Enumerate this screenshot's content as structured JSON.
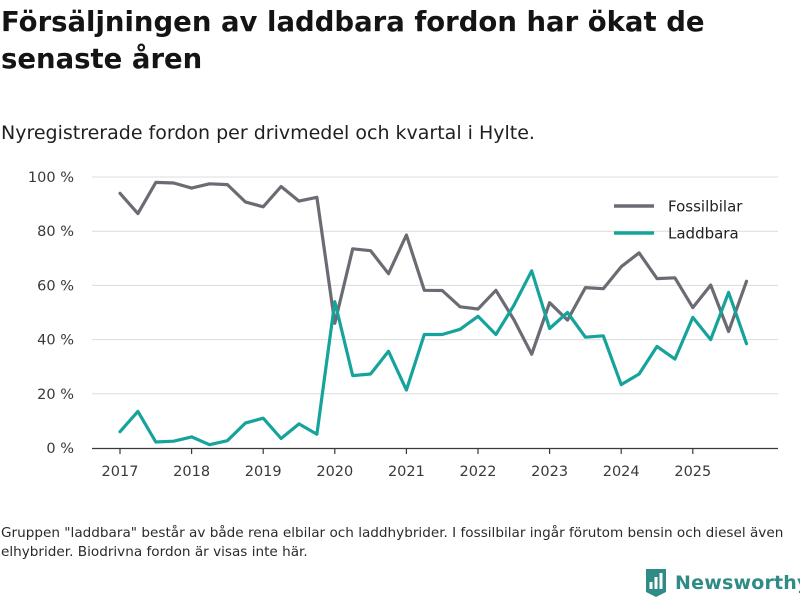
{
  "title": "Försäljningen av laddbara fordon har ökat de senaste åren",
  "subtitle": "Nyregistrerade fordon per drivmedel och kvartal i Hylte.",
  "footnote": "Gruppen \"laddbara\" består av både rena elbilar och laddhybrider. I fossilbilar ingår förutom bensin och diesel även elhybrider. Biodrivna fordon är visas inte här.",
  "brand": {
    "name": "Newsworthy",
    "icon": "newsworthy-logo-icon",
    "color": "#2e8b86"
  },
  "chart_data": {
    "type": "line",
    "title": "Försäljningen av laddbara fordon har ökat de senaste åren",
    "subtitle": "Nyregistrerade fordon per drivmedel och kvartal i Hylte.",
    "xlabel": "",
    "ylabel": "",
    "xlim": [
      2017.0,
      2025.75
    ],
    "ylim": [
      0,
      100
    ],
    "grid": true,
    "legend_position": "top-right",
    "x_ticks": [
      2017,
      2018,
      2019,
      2020,
      2021,
      2022,
      2023,
      2024,
      2025
    ],
    "x_tick_labels": [
      "2017",
      "2018",
      "2019",
      "2020",
      "2021",
      "2022",
      "2023",
      "2024",
      "2025"
    ],
    "y_ticks": [
      0,
      20,
      40,
      60,
      80,
      100
    ],
    "y_tick_labels": [
      "0 %",
      "20 %",
      "40 %",
      "60 %",
      "80 %",
      "100 %"
    ],
    "x": [
      2017.0,
      2017.25,
      2017.5,
      2017.75,
      2018.0,
      2018.25,
      2018.5,
      2018.75,
      2019.0,
      2019.25,
      2019.5,
      2019.75,
      2020.0,
      2020.25,
      2020.5,
      2020.75,
      2021.0,
      2021.25,
      2021.5,
      2021.75,
      2022.0,
      2022.25,
      2022.5,
      2022.75,
      2023.0,
      2023.25,
      2023.5,
      2023.75,
      2024.0,
      2024.25,
      2024.5,
      2024.75,
      2025.0,
      2025.25,
      2025.5,
      2025.75
    ],
    "series": [
      {
        "name": "Fossilbilar",
        "color": "#6b6b73",
        "values": [
          94,
          86.5,
          98,
          97.8,
          95.9,
          97.5,
          97.2,
          90.8,
          89,
          96.5,
          91.1,
          92.5,
          46,
          73.5,
          72.8,
          64.3,
          78.6,
          58.2,
          58.1,
          52.1,
          51.3,
          58.2,
          47.4,
          34.6,
          53.6,
          47.2,
          59.2,
          58.8,
          66.9,
          72,
          62.5,
          62.8,
          51.8,
          60.1,
          43,
          61.5
        ]
      },
      {
        "name": "Laddbara",
        "color": "#16a39b",
        "values": [
          6,
          13.5,
          2.2,
          2.5,
          4.1,
          1.2,
          2.7,
          9.2,
          11,
          3.5,
          8.9,
          5.1,
          54,
          26.7,
          27.3,
          35.7,
          21.4,
          41.9,
          41.9,
          43.8,
          48.6,
          41.9,
          52.6,
          65.4,
          44.1,
          50,
          40.9,
          41.4,
          23.4,
          27.3,
          37.5,
          32.8,
          48.2,
          40,
          57.4,
          38.5
        ]
      }
    ]
  }
}
